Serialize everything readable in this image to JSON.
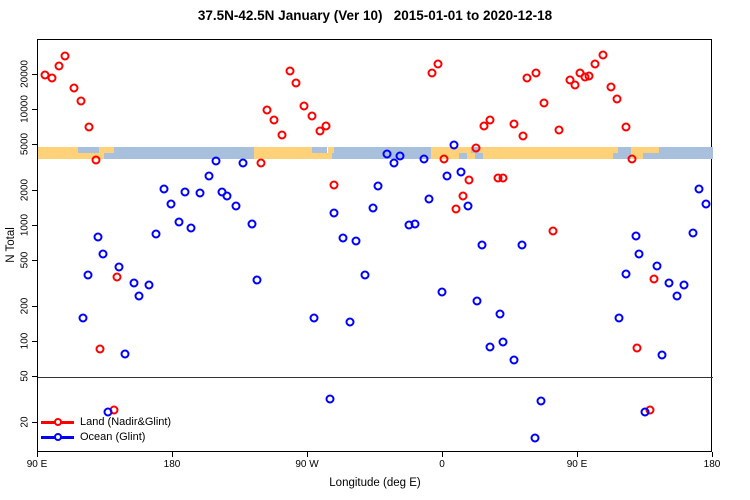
{
  "title": "37.5N-42.5N January (Ver 10)   2015-01-01 to 2020-12-18",
  "axes": {
    "y_label": "N Total",
    "x_label": "Longitude (deg E)",
    "y_scale": "log",
    "y_ticks": [
      20000,
      10000,
      5000,
      2000,
      1000,
      500,
      200,
      100,
      50,
      20
    ],
    "x_ticks": [
      {
        "label": "90 E",
        "lon": 90
      },
      {
        "label": "180",
        "lon": 180
      },
      {
        "label": "90 W",
        "lon": 270
      },
      {
        "label": "0",
        "lon": 360
      },
      {
        "label": "90 E",
        "lon": 450
      },
      {
        "label": "180",
        "lon": 540
      }
    ],
    "x_range_deg_east": [
      90,
      540
    ],
    "reference_line_n": 50,
    "grid": "off"
  },
  "legend": {
    "position": "bottom-left-inside",
    "items": [
      {
        "label": "Land (Nadir&Glint)",
        "color": "#ff0000"
      },
      {
        "label": "Ocean (Glint)",
        "color": "#0000ff"
      }
    ]
  },
  "colors": {
    "land_marker": "#ff0000",
    "ocean_marker": "#0000ff",
    "band_land": "#ffd27a",
    "band_ocean": "#a9c0dc",
    "frame": "#000000"
  },
  "chart_data": {
    "type": "scatter",
    "title": "37.5N-42.5N January (Ver 10)   2015-01-01 to 2020-12-18",
    "xlabel": "Longitude (deg E)",
    "ylabel": "N Total",
    "xlim_deg_east": [
      90,
      540
    ],
    "ylim": [
      10,
      40000
    ],
    "series": [
      {
        "name": "Land (Nadir&Glint)",
        "color": "#ff0000",
        "points": [
          {
            "lon": 94.7,
            "n": 20000
          },
          {
            "lon": 99.3,
            "n": 19000
          },
          {
            "lon": 104.0,
            "n": 24000
          },
          {
            "lon": 108.0,
            "n": 29000
          },
          {
            "lon": 114.0,
            "n": 15500
          },
          {
            "lon": 118.7,
            "n": 12000
          },
          {
            "lon": 124.0,
            "n": 7100
          },
          {
            "lon": 128.7,
            "n": 3700
          },
          {
            "lon": 131.3,
            "n": 87
          },
          {
            "lon": 140.7,
            "n": 26
          },
          {
            "lon": 142.7,
            "n": 360
          },
          {
            "lon": 238.7,
            "n": 3500
          },
          {
            "lon": 242.7,
            "n": 10000
          },
          {
            "lon": 247.3,
            "n": 8200
          },
          {
            "lon": 252.7,
            "n": 6100
          },
          {
            "lon": 258.0,
            "n": 21700
          },
          {
            "lon": 262.0,
            "n": 17000
          },
          {
            "lon": 267.3,
            "n": 10800
          },
          {
            "lon": 272.7,
            "n": 8900
          },
          {
            "lon": 278.0,
            "n": 6600
          },
          {
            "lon": 282.0,
            "n": 7300
          },
          {
            "lon": 287.3,
            "n": 2250
          },
          {
            "lon": 352.7,
            "n": 21000
          },
          {
            "lon": 356.7,
            "n": 25000
          },
          {
            "lon": 360.7,
            "n": 3800
          },
          {
            "lon": 368.7,
            "n": 1400
          },
          {
            "lon": 373.3,
            "n": 1800
          },
          {
            "lon": 377.3,
            "n": 2500
          },
          {
            "lon": 382.0,
            "n": 4700
          },
          {
            "lon": 387.3,
            "n": 7300
          },
          {
            "lon": 391.3,
            "n": 8200
          },
          {
            "lon": 396.7,
            "n": 2600
          },
          {
            "lon": 400.0,
            "n": 2600
          },
          {
            "lon": 407.3,
            "n": 7600
          },
          {
            "lon": 413.3,
            "n": 6000
          },
          {
            "lon": 416.0,
            "n": 19000
          },
          {
            "lon": 422.0,
            "n": 21000
          },
          {
            "lon": 427.3,
            "n": 11500
          },
          {
            "lon": 433.3,
            "n": 900
          },
          {
            "lon": 437.3,
            "n": 6700
          },
          {
            "lon": 444.7,
            "n": 18000
          },
          {
            "lon": 448.0,
            "n": 16500
          },
          {
            "lon": 451.3,
            "n": 21000
          },
          {
            "lon": 454.7,
            "n": 19200
          },
          {
            "lon": 457.3,
            "n": 19600
          },
          {
            "lon": 461.3,
            "n": 25000
          },
          {
            "lon": 466.7,
            "n": 30000
          },
          {
            "lon": 472.0,
            "n": 15800
          },
          {
            "lon": 476.0,
            "n": 12400
          },
          {
            "lon": 482.0,
            "n": 7100
          },
          {
            "lon": 486.0,
            "n": 3800
          },
          {
            "lon": 489.3,
            "n": 89
          },
          {
            "lon": 498.0,
            "n": 26
          },
          {
            "lon": 500.7,
            "n": 350
          }
        ]
      },
      {
        "name": "Ocean (Glint)",
        "color": "#0000ff",
        "points": [
          {
            "lon": 120.0,
            "n": 160
          },
          {
            "lon": 123.3,
            "n": 380
          },
          {
            "lon": 130.0,
            "n": 800
          },
          {
            "lon": 133.3,
            "n": 570
          },
          {
            "lon": 136.7,
            "n": 25
          },
          {
            "lon": 144.0,
            "n": 440
          },
          {
            "lon": 148.0,
            "n": 79
          },
          {
            "lon": 154.0,
            "n": 320
          },
          {
            "lon": 157.3,
            "n": 250
          },
          {
            "lon": 164.0,
            "n": 310
          },
          {
            "lon": 168.7,
            "n": 850
          },
          {
            "lon": 174.0,
            "n": 2100
          },
          {
            "lon": 178.7,
            "n": 1550
          },
          {
            "lon": 184.0,
            "n": 1080
          },
          {
            "lon": 188.0,
            "n": 1960
          },
          {
            "lon": 192.0,
            "n": 960
          },
          {
            "lon": 198.0,
            "n": 1920
          },
          {
            "lon": 204.0,
            "n": 2700
          },
          {
            "lon": 208.7,
            "n": 3600
          },
          {
            "lon": 212.7,
            "n": 1960
          },
          {
            "lon": 216.0,
            "n": 1820
          },
          {
            "lon": 222.0,
            "n": 1500
          },
          {
            "lon": 226.7,
            "n": 3500
          },
          {
            "lon": 232.7,
            "n": 1040
          },
          {
            "lon": 236.0,
            "n": 340
          },
          {
            "lon": 274.0,
            "n": 160
          },
          {
            "lon": 284.7,
            "n": 32
          },
          {
            "lon": 287.3,
            "n": 1300
          },
          {
            "lon": 293.3,
            "n": 790
          },
          {
            "lon": 298.0,
            "n": 150
          },
          {
            "lon": 302.0,
            "n": 740
          },
          {
            "lon": 308.0,
            "n": 380
          },
          {
            "lon": 313.3,
            "n": 1430
          },
          {
            "lon": 316.7,
            "n": 2200
          },
          {
            "lon": 322.7,
            "n": 4200
          },
          {
            "lon": 327.3,
            "n": 3500
          },
          {
            "lon": 331.3,
            "n": 4000
          },
          {
            "lon": 337.3,
            "n": 1020
          },
          {
            "lon": 341.3,
            "n": 1040
          },
          {
            "lon": 347.3,
            "n": 3800
          },
          {
            "lon": 350.7,
            "n": 1700
          },
          {
            "lon": 359.3,
            "n": 270
          },
          {
            "lon": 362.7,
            "n": 2700
          },
          {
            "lon": 367.3,
            "n": 5000
          },
          {
            "lon": 372.0,
            "n": 2900
          },
          {
            "lon": 376.7,
            "n": 1500
          },
          {
            "lon": 382.7,
            "n": 225
          },
          {
            "lon": 386.0,
            "n": 690
          },
          {
            "lon": 391.3,
            "n": 90
          },
          {
            "lon": 398.0,
            "n": 175
          },
          {
            "lon": 400.0,
            "n": 100
          },
          {
            "lon": 407.3,
            "n": 70
          },
          {
            "lon": 412.7,
            "n": 690
          },
          {
            "lon": 421.3,
            "n": 15
          },
          {
            "lon": 425.3,
            "n": 31
          },
          {
            "lon": 477.3,
            "n": 160
          },
          {
            "lon": 482.0,
            "n": 385
          },
          {
            "lon": 488.7,
            "n": 820
          },
          {
            "lon": 490.7,
            "n": 570
          },
          {
            "lon": 494.7,
            "n": 25
          },
          {
            "lon": 502.7,
            "n": 450
          },
          {
            "lon": 506.0,
            "n": 77
          },
          {
            "lon": 510.7,
            "n": 320
          },
          {
            "lon": 516.0,
            "n": 250
          },
          {
            "lon": 520.7,
            "n": 310
          },
          {
            "lon": 526.7,
            "n": 870
          },
          {
            "lon": 530.7,
            "n": 2100
          },
          {
            "lon": 535.3,
            "n": 1550
          }
        ]
      }
    ],
    "land_ocean_band": {
      "description": "Horizontal strip near N=3800-4800 showing land (orange) vs ocean (blue) along the 37.5N-42.5N latitude belt",
      "n_range": [
        3780,
        4800
      ],
      "rows": [
        {
          "name": "north",
          "segments": [
            {
              "from": 90,
              "to": 116.7,
              "type": "land"
            },
            {
              "from": 116.7,
              "to": 130.7,
              "type": "ocean"
            },
            {
              "from": 130.7,
              "to": 140.7,
              "type": "land"
            },
            {
              "from": 140.7,
              "to": 234,
              "type": "ocean"
            },
            {
              "from": 234,
              "to": 272.7,
              "type": "land"
            },
            {
              "from": 272.7,
              "to": 283,
              "type": "ocean"
            },
            {
              "from": 283,
              "to": 287,
              "type": "land"
            },
            {
              "from": 287,
              "to": 352,
              "type": "ocean"
            },
            {
              "from": 352,
              "to": 378.7,
              "type": "land"
            },
            {
              "from": 378.7,
              "to": 384,
              "type": "ocean"
            },
            {
              "from": 384,
              "to": 476.7,
              "type": "land"
            },
            {
              "from": 476.7,
              "to": 485.3,
              "type": "ocean"
            },
            {
              "from": 485.3,
              "to": 504,
              "type": "land"
            },
            {
              "from": 504,
              "to": 540,
              "type": "ocean"
            }
          ]
        },
        {
          "name": "south",
          "segments": [
            {
              "from": 90,
              "to": 134,
              "type": "land"
            },
            {
              "from": 134,
              "to": 234,
              "type": "ocean"
            },
            {
              "from": 234,
              "to": 286,
              "type": "land"
            },
            {
              "from": 286,
              "to": 352,
              "type": "ocean"
            },
            {
              "from": 352,
              "to": 370.7,
              "type": "land"
            },
            {
              "from": 370.7,
              "to": 376,
              "type": "ocean"
            },
            {
              "from": 376,
              "to": 381.3,
              "type": "land"
            },
            {
              "from": 381.3,
              "to": 386.7,
              "type": "ocean"
            },
            {
              "from": 386.7,
              "to": 473.3,
              "type": "land"
            },
            {
              "from": 473.3,
              "to": 485.3,
              "type": "ocean"
            },
            {
              "from": 485.3,
              "to": 493.3,
              "type": "land"
            },
            {
              "from": 493.3,
              "to": 540,
              "type": "ocean"
            }
          ]
        }
      ]
    }
  }
}
